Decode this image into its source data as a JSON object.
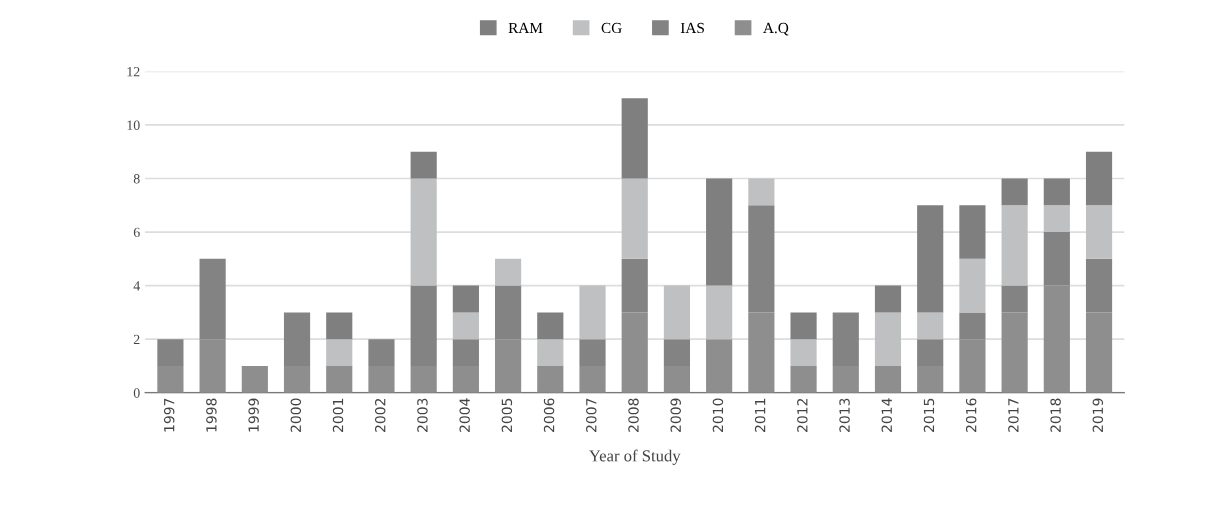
{
  "chart_data": {
    "type": "bar",
    "stacked": true,
    "xlabel": "Year of Study",
    "categories": [
      "1997",
      "1998",
      "1999",
      "2000",
      "2001",
      "2002",
      "2003",
      "2004",
      "2005",
      "2006",
      "2007",
      "2008",
      "2009",
      "2010",
      "2011",
      "2012",
      "2013",
      "2014",
      "2015",
      "2016",
      "2017",
      "2018",
      "2019"
    ],
    "series": [
      {
        "name": "A.Q",
        "color": "#8e8e8f",
        "values": [
          1,
          2,
          1,
          1,
          1,
          1,
          1,
          1,
          2,
          1,
          1,
          3,
          1,
          2,
          3,
          1,
          1,
          1,
          1,
          2,
          3,
          4,
          3
        ]
      },
      {
        "name": "IAS",
        "color": "#838384",
        "values": [
          1,
          3,
          0,
          2,
          0,
          1,
          3,
          1,
          2,
          0,
          1,
          2,
          1,
          0,
          4,
          0,
          2,
          0,
          1,
          1,
          1,
          2,
          2
        ]
      },
      {
        "name": "CG",
        "color": "#bfc0c1",
        "values": [
          0,
          0,
          0,
          0,
          1,
          0,
          4,
          1,
          1,
          1,
          2,
          3,
          2,
          2,
          1,
          1,
          0,
          2,
          1,
          2,
          3,
          1,
          2
        ]
      },
      {
        "name": "RAM",
        "color": "#7f7f80",
        "values": [
          0,
          0,
          0,
          0,
          1,
          0,
          1,
          1,
          0,
          1,
          0,
          3,
          0,
          4,
          0,
          1,
          0,
          1,
          4,
          2,
          1,
          1,
          2
        ]
      }
    ],
    "ylim": [
      0,
      12
    ],
    "yticks": [
      0,
      2,
      4,
      6,
      8,
      10,
      12
    ],
    "grid": "y",
    "legend": "top"
  }
}
